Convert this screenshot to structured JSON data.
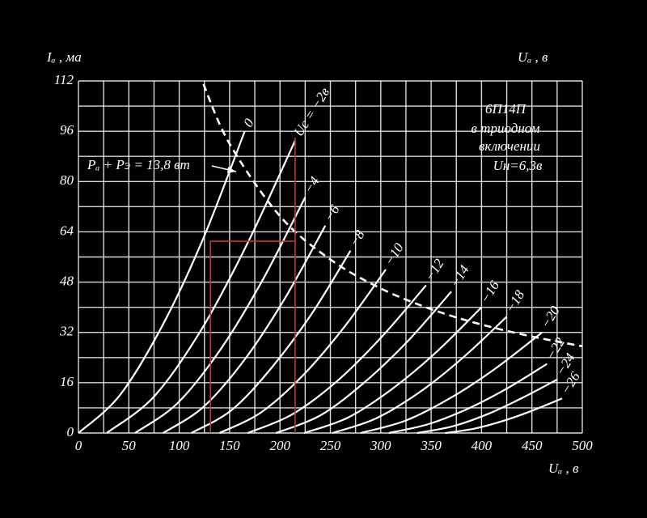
{
  "chart_data": {
    "type": "line",
    "y_label": "Iₐ , ма",
    "x_label_top": "Uₐ , в",
    "x_label": "Uₐ , в",
    "annotation": [
      "6П14П",
      "в триодном",
      "включении",
      "Uн=6,3в"
    ],
    "xlim": [
      0,
      500
    ],
    "ylim": [
      0,
      112
    ],
    "xticks": [
      0,
      50,
      100,
      150,
      200,
      250,
      300,
      350,
      400,
      450,
      500
    ],
    "yticks": [
      0,
      16,
      32,
      48,
      64,
      80,
      96,
      112
    ],
    "x_minor_grid": [
      25,
      75,
      125,
      175,
      225,
      275,
      325,
      375,
      425,
      475
    ],
    "y_minor_grid": [
      8,
      24,
      40,
      56,
      72,
      88,
      104
    ],
    "grid": true,
    "series": [
      {
        "name": "0",
        "color": "#ffffff",
        "x": [
          0,
          41,
          83,
          124,
          165
        ],
        "values": [
          0,
          12,
          34,
          62,
          96
        ]
      },
      {
        "name": "Uc = −2в",
        "color": "#ffffff",
        "x": [
          28,
          75,
          122,
          168,
          215
        ],
        "values": [
          0,
          11.6,
          32.9,
          60.5,
          93
        ]
      },
      {
        "name": "−4",
        "color": "#ffffff",
        "x": [
          56,
          98,
          141,
          183,
          225
        ],
        "values": [
          0,
          9.4,
          26.6,
          48.8,
          75
        ]
      },
      {
        "name": "−6",
        "color": "#ffffff",
        "x": [
          84,
          124,
          165,
          205,
          245
        ],
        "values": [
          0,
          8.3,
          23.4,
          42.9,
          66
        ]
      },
      {
        "name": "−8",
        "color": "#ffffff",
        "x": [
          112,
          152,
          191,
          231,
          270
        ],
        "values": [
          0,
          7.3,
          20.5,
          37.7,
          58
        ]
      },
      {
        "name": "−10",
        "color": "#ffffff",
        "x": [
          140,
          181,
          223,
          264,
          305
        ],
        "values": [
          0,
          6.5,
          18.4,
          33.8,
          52
        ]
      },
      {
        "name": "−12",
        "color": "#ffffff",
        "x": [
          168,
          212,
          257,
          301,
          345
        ],
        "values": [
          0,
          5.9,
          16.6,
          30.6,
          47
        ]
      },
      {
        "name": "−14",
        "color": "#ffffff",
        "x": [
          196,
          240,
          283,
          327,
          370
        ],
        "values": [
          0,
          5.6,
          15.9,
          29.3,
          45
        ]
      },
      {
        "name": "−16",
        "color": "#ffffff",
        "x": [
          224,
          268,
          312,
          356,
          400
        ],
        "values": [
          0,
          5,
          14.2,
          26,
          40
        ]
      },
      {
        "name": "−18",
        "color": "#ffffff",
        "x": [
          252,
          295,
          339,
          382,
          425
        ],
        "values": [
          0,
          4.6,
          13.1,
          24.1,
          37
        ]
      },
      {
        "name": "−20",
        "color": "#ffffff",
        "x": [
          280,
          325,
          370,
          415,
          460
        ],
        "values": [
          0,
          4,
          11.3,
          20.8,
          32
        ]
      },
      {
        "name": "−22",
        "color": "#ffffff",
        "x": [
          308,
          347,
          387,
          426,
          465
        ],
        "values": [
          0,
          2.8,
          7.8,
          14.3,
          22
        ]
      },
      {
        "name": "−24",
        "color": "#ffffff",
        "x": [
          336,
          371,
          406,
          440,
          475
        ],
        "values": [
          0,
          2.1,
          6,
          11.1,
          17
        ]
      },
      {
        "name": "−26",
        "color": "#ffffff",
        "x": [
          364,
          393,
          422,
          451,
          480
        ],
        "values": [
          0,
          1.4,
          3.9,
          7.2,
          11
        ]
      }
    ],
    "power_curve": {
      "name": "Pₐ + Pэ = 13,8 вт",
      "color": "#ffffff",
      "dashed": true,
      "x": [
        124,
        150,
        200,
        250,
        300,
        350,
        400,
        450,
        500
      ],
      "values": [
        111,
        92,
        69,
        55.2,
        46,
        39.4,
        34.5,
        30.7,
        27.6
      ]
    },
    "guide_lines": [
      {
        "color": "#c0392b",
        "x": [
          131,
          131,
          215
        ],
        "values": [
          0,
          61,
          61
        ]
      },
      {
        "color": "#c0392b",
        "x": [
          215,
          215
        ],
        "values": [
          0,
          94
        ]
      }
    ]
  }
}
